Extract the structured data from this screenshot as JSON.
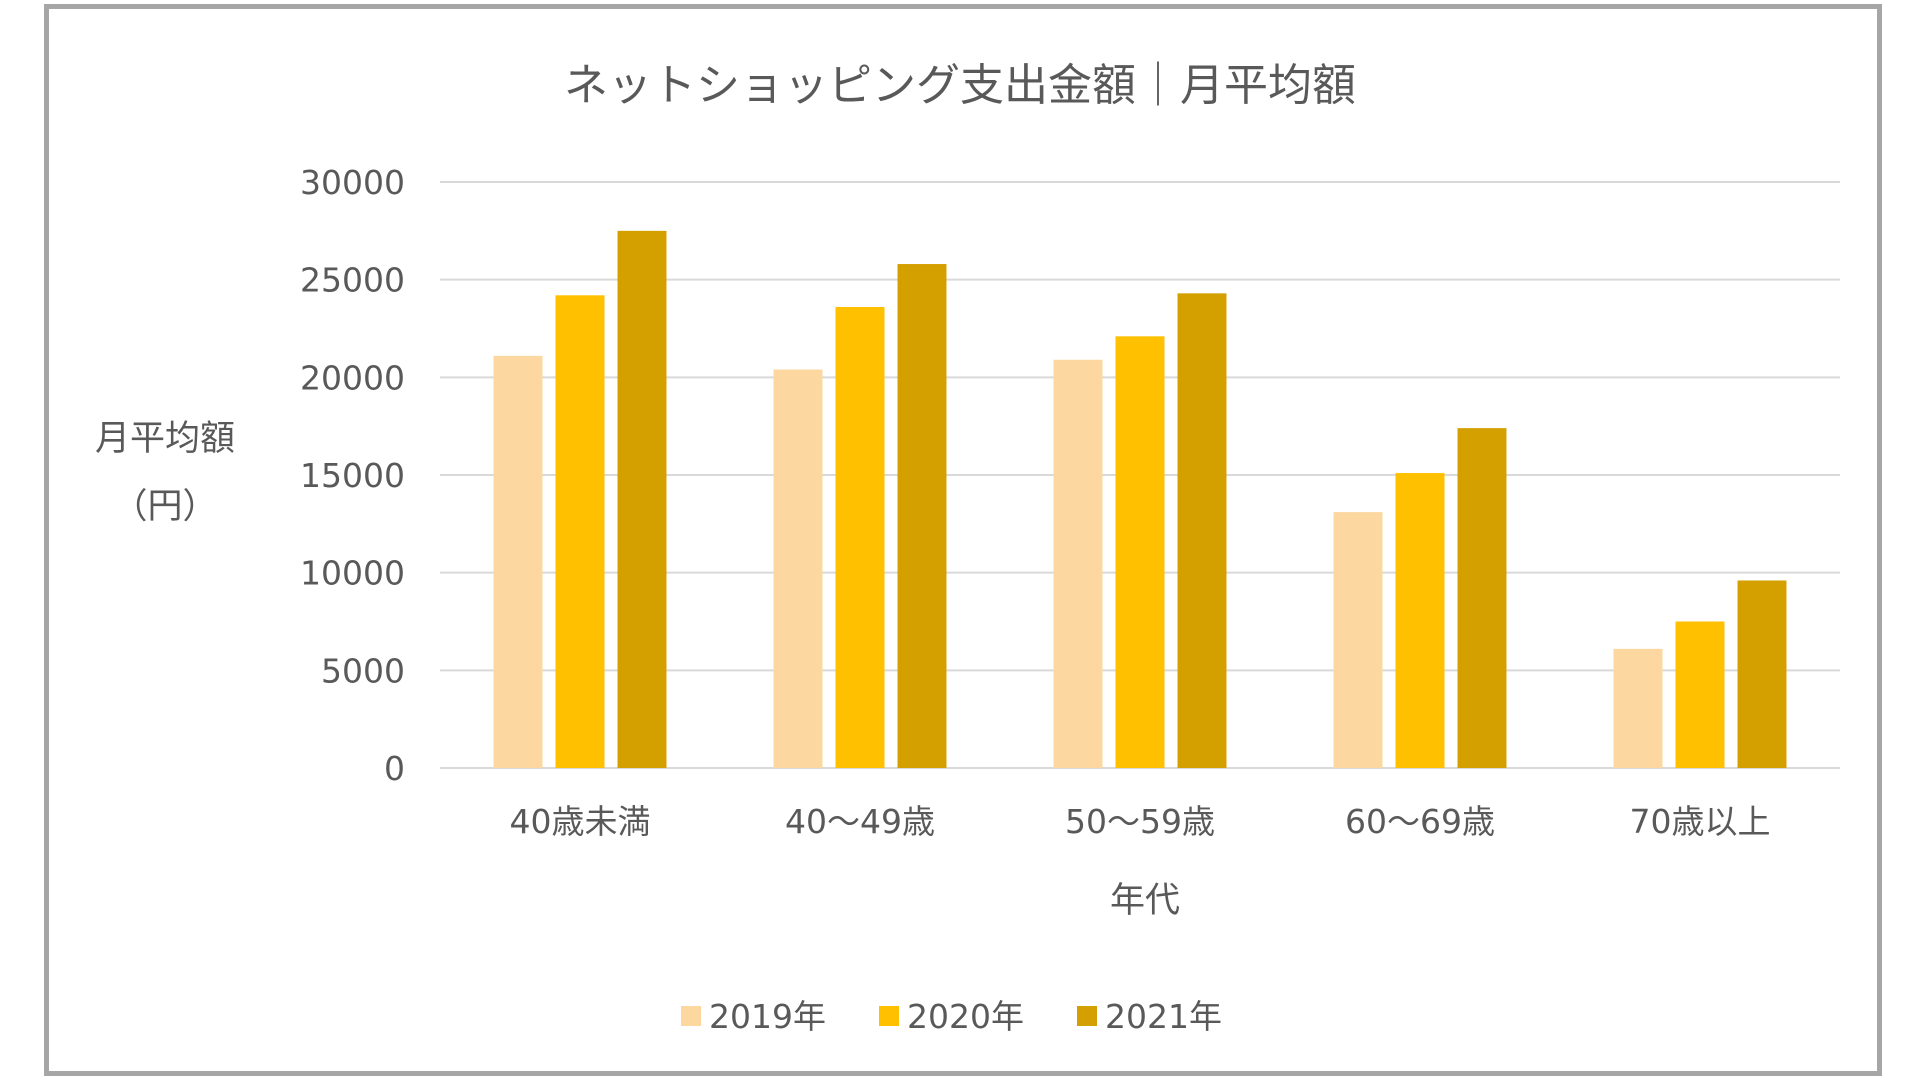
{
  "chart_data": {
    "type": "bar",
    "title": "ネットショッピング支出金額｜月平均額",
    "xlabel": "年代",
    "ylabel_line1": "月平均額",
    "ylabel_line2": "（円）",
    "ylim": [
      0,
      30000
    ],
    "yticks": [
      0,
      5000,
      10000,
      15000,
      20000,
      25000,
      30000
    ],
    "ytick_labels": [
      "0",
      "5000",
      "10000",
      "15000",
      "20000",
      "25000",
      "30000"
    ],
    "categories": [
      "40歳未満",
      "40～49歳",
      "50～59歳",
      "60～69歳",
      "70歳以上"
    ],
    "series": [
      {
        "name": "2019年",
        "color": "#fcd8a0",
        "values": [
          21100,
          20400,
          20900,
          13100,
          6100
        ]
      },
      {
        "name": "2020年",
        "color": "#ffc000",
        "values": [
          24200,
          23600,
          22100,
          15100,
          7500
        ]
      },
      {
        "name": "2021年",
        "color": "#d4a000",
        "values": [
          27500,
          25800,
          24300,
          17400,
          9600
        ]
      }
    ],
    "legend_position": "bottom",
    "grid": true
  }
}
